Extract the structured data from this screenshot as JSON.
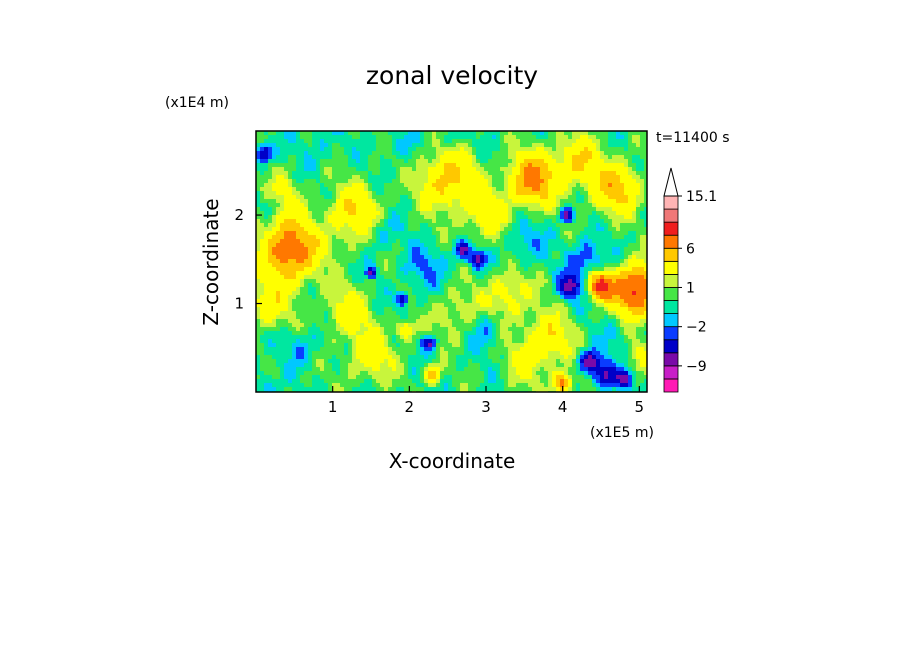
{
  "chart_data": {
    "type": "heatmap",
    "title": "zonal velocity",
    "xlabel": "X-coordinate",
    "ylabel": "Z-coordinate",
    "x_unit": "(x1E5 m)",
    "y_unit": "(x1E4 m)",
    "annotation": "t=11400 s",
    "xlim": [
      0,
      5.1
    ],
    "ylim": [
      0,
      2.95
    ],
    "x_ticks": [
      {
        "value": 1,
        "label": "1"
      },
      {
        "value": 2,
        "label": "2"
      },
      {
        "value": 3,
        "label": "3"
      },
      {
        "value": 4,
        "label": "4"
      },
      {
        "value": 5,
        "label": "5"
      }
    ],
    "y_ticks": [
      {
        "value": 1,
        "label": "1"
      },
      {
        "value": 2,
        "label": "2"
      }
    ],
    "colorbar": {
      "levels": [
        -15,
        -12,
        -9,
        -6,
        -4,
        -2,
        -1,
        0,
        1,
        2,
        4,
        6,
        9,
        12,
        15.1
      ],
      "colors": [
        "#ff1ab4",
        "#c81ec8",
        "#7a0aa8",
        "#0000c8",
        "#0a3cff",
        "#00c8ff",
        "#00e7a0",
        "#46e646",
        "#c8f53c",
        "#ffff00",
        "#ffc800",
        "#ff7800",
        "#f01e1e",
        "#f07878",
        "#ffb4b4"
      ],
      "labels": [
        {
          "level": -9,
          "text": "−9"
        },
        {
          "level": -2,
          "text": "−2"
        },
        {
          "level": 1,
          "text": "1"
        },
        {
          "level": 6,
          "text": "6"
        },
        {
          "level": 15.1,
          "text": "15.1"
        }
      ],
      "extend": "max"
    },
    "grid": false,
    "legend": "colorbar right",
    "features": [
      {
        "x": 0.45,
        "z": 1.6,
        "u": 8,
        "r": 0.35
      },
      {
        "x": 0.15,
        "z": 1.0,
        "u": 3,
        "r": 0.3
      },
      {
        "x": 0.35,
        "z": 2.2,
        "u": 2,
        "r": 0.3
      },
      {
        "x": 0.1,
        "z": 2.7,
        "u": -7,
        "r": 0.1
      },
      {
        "x": 0.2,
        "z": 2.1,
        "u": -2,
        "r": 0.12
      },
      {
        "x": 0.1,
        "z": 0.05,
        "u": -2,
        "r": 0.15
      },
      {
        "x": 0.6,
        "z": 0.5,
        "u": -2,
        "r": 0.2
      },
      {
        "x": 1.3,
        "z": 2.0,
        "u": 4,
        "r": 0.35
      },
      {
        "x": 1.2,
        "z": 0.9,
        "u": 3,
        "r": 0.3
      },
      {
        "x": 1.6,
        "z": 1.8,
        "u": -2,
        "r": 0.25
      },
      {
        "x": 1.5,
        "z": 0.4,
        "u": 3,
        "r": 0.3
      },
      {
        "x": 1.9,
        "z": 1.05,
        "u": -7,
        "r": 0.07
      },
      {
        "x": 1.5,
        "z": 1.35,
        "u": -7,
        "r": 0.06
      },
      {
        "x": 1.95,
        "z": 0.7,
        "u": 4,
        "r": 0.12
      },
      {
        "x": 2.2,
        "z": 1.4,
        "u": -2,
        "r": 0.28
      },
      {
        "x": 2.25,
        "z": 0.55,
        "u": -7,
        "r": 0.08
      },
      {
        "x": 2.3,
        "z": 0.2,
        "u": 6,
        "r": 0.1
      },
      {
        "x": 2.5,
        "z": 2.4,
        "u": 5,
        "r": 0.35
      },
      {
        "x": 2.7,
        "z": 1.6,
        "u": -7,
        "r": 0.1
      },
      {
        "x": 2.9,
        "z": 1.5,
        "u": -7,
        "r": 0.1
      },
      {
        "x": 2.6,
        "z": 0.9,
        "u": 2,
        "r": 0.3
      },
      {
        "x": 3.0,
        "z": 0.7,
        "u": -2,
        "r": 0.2
      },
      {
        "x": 3.0,
        "z": 2.0,
        "u": 3,
        "r": 0.3
      },
      {
        "x": 3.6,
        "z": 2.4,
        "u": 7,
        "r": 0.3
      },
      {
        "x": 3.5,
        "z": 1.7,
        "u": -2,
        "r": 0.25
      },
      {
        "x": 3.3,
        "z": 1.1,
        "u": 3,
        "r": 0.3
      },
      {
        "x": 3.8,
        "z": 0.6,
        "u": 4,
        "r": 0.3
      },
      {
        "x": 3.5,
        "z": 0.3,
        "u": 2,
        "r": 0.25
      },
      {
        "x": 4.05,
        "z": 2.0,
        "u": -7,
        "r": 0.08
      },
      {
        "x": 4.1,
        "z": 1.2,
        "u": -7,
        "r": 0.14
      },
      {
        "x": 4.3,
        "z": 1.5,
        "u": -3,
        "r": 0.22
      },
      {
        "x": 4.35,
        "z": 0.35,
        "u": -8,
        "r": 0.12
      },
      {
        "x": 4.55,
        "z": 0.2,
        "u": -7,
        "r": 0.14
      },
      {
        "x": 4.8,
        "z": 0.15,
        "u": -7,
        "r": 0.1
      },
      {
        "x": 4.95,
        "z": 1.15,
        "u": 10,
        "r": 0.28
      },
      {
        "x": 4.5,
        "z": 1.2,
        "u": 10,
        "r": 0.15
      },
      {
        "x": 4.7,
        "z": 2.3,
        "u": 5,
        "r": 0.3
      },
      {
        "x": 4.2,
        "z": 2.6,
        "u": 4,
        "r": 0.3
      },
      {
        "x": 4.0,
        "z": 0.1,
        "u": 7,
        "r": 0.12
      },
      {
        "x": 4.7,
        "z": 0.6,
        "u": -1,
        "r": 0.2
      },
      {
        "x": 5.0,
        "z": 0.4,
        "u": 2,
        "r": 0.2
      },
      {
        "x": 0.8,
        "z": 2.8,
        "u": -1,
        "r": 0.3
      },
      {
        "x": 1.9,
        "z": 2.8,
        "u": -1,
        "r": 0.25
      },
      {
        "x": 2.6,
        "z": 2.9,
        "u": -1,
        "r": 0.2
      }
    ]
  }
}
